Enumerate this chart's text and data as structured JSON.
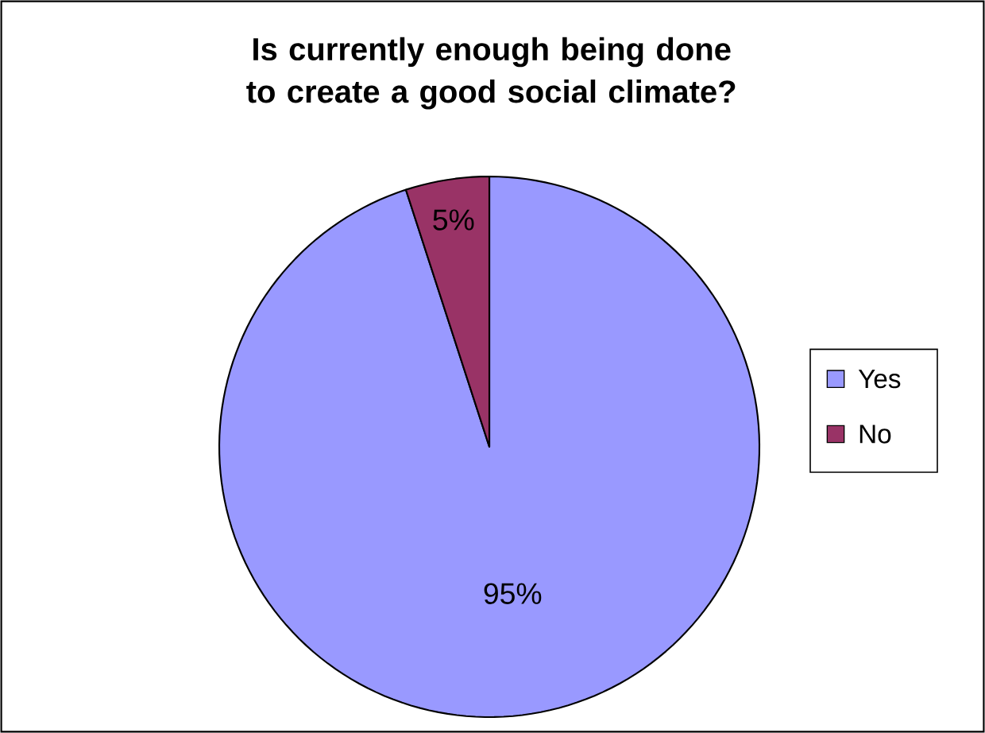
{
  "chart_data": {
    "type": "pie",
    "title": "Is currently enough being done to create a good social climate?",
    "categories": [
      "Yes",
      "No"
    ],
    "values": [
      95,
      5
    ],
    "colors": [
      "#9999ff",
      "#993366"
    ],
    "value_labels": [
      "95%",
      "5%"
    ],
    "legend": "right"
  }
}
